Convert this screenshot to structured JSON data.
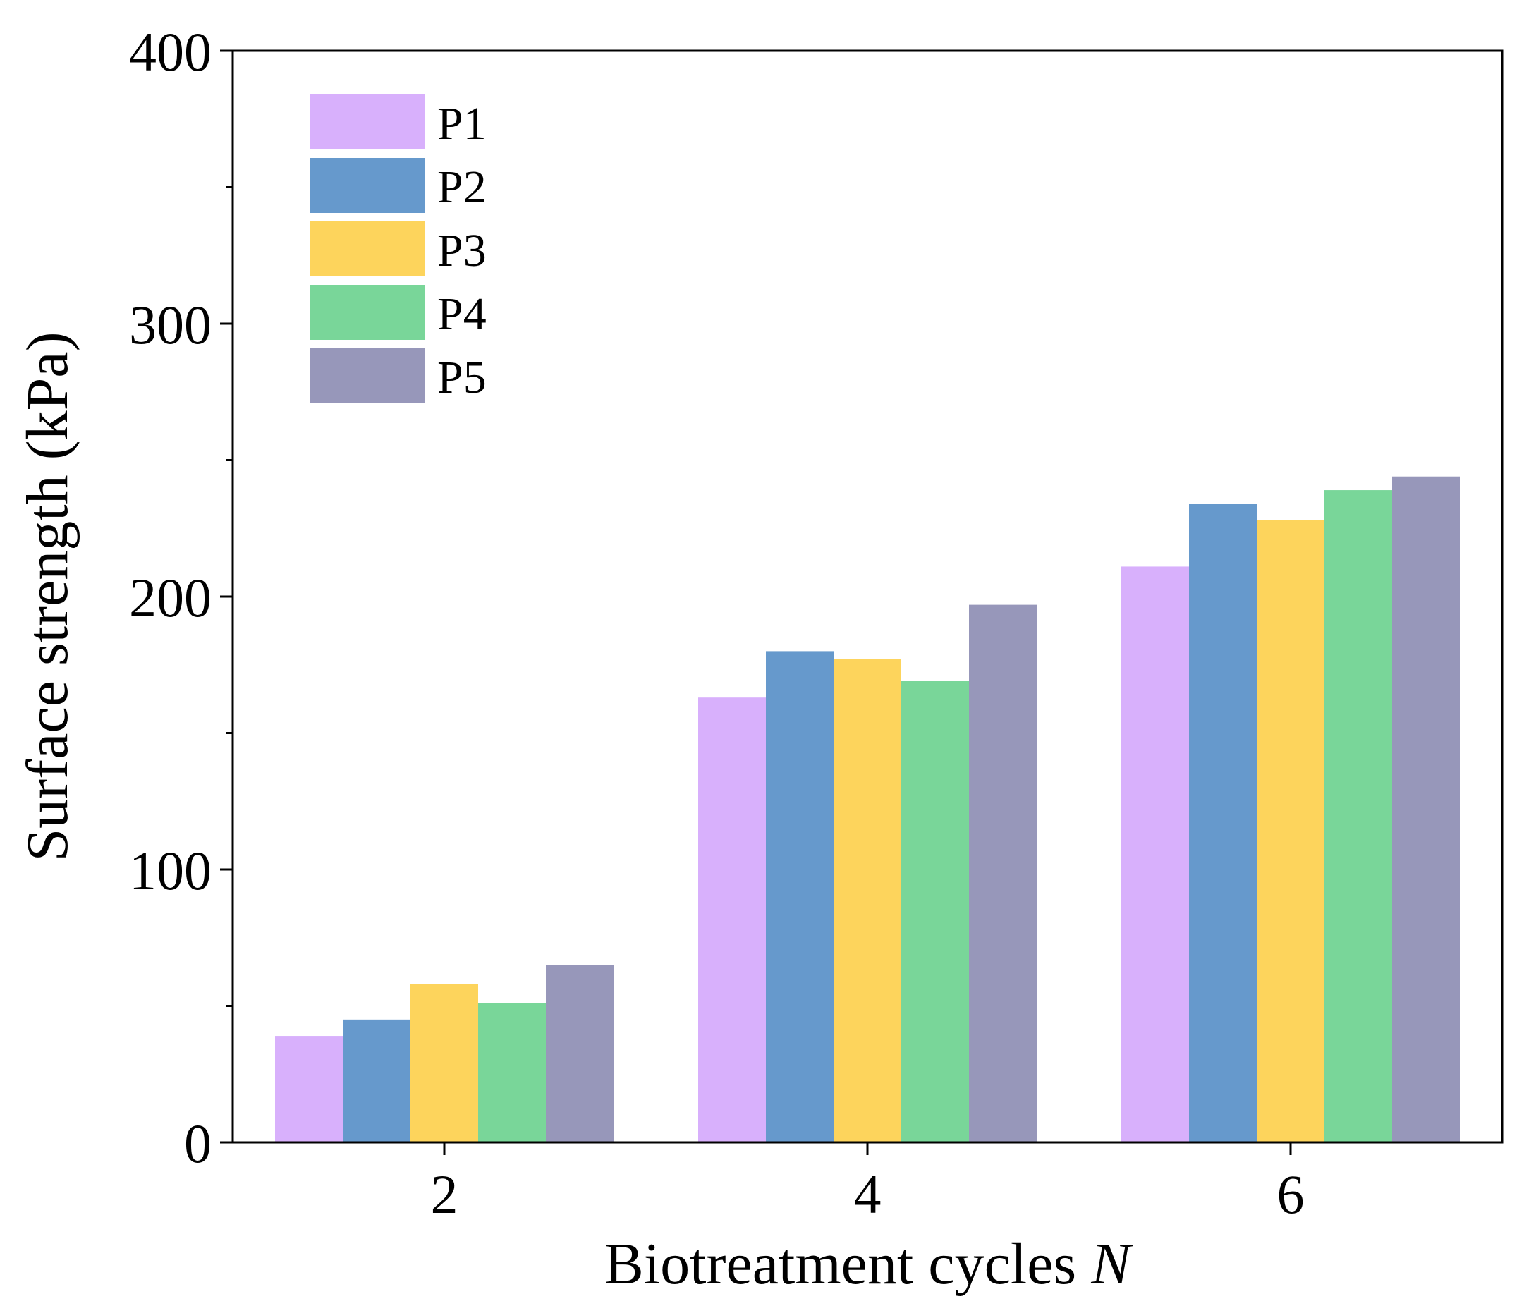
{
  "chart_data": {
    "type": "bar",
    "title": "",
    "xlabel": "Biotreatment cycles",
    "xlabel_var": "N",
    "ylabel": "Surface strength (kPa)",
    "categories": [
      "2",
      "4",
      "6"
    ],
    "ylim": [
      0,
      400
    ],
    "yticks": [
      0,
      100,
      200,
      300,
      400
    ],
    "ytick_labels": [
      "0",
      "100",
      "200",
      "300",
      "400"
    ],
    "grid": false,
    "legend_position": "top-left",
    "series": [
      {
        "name": "P1",
        "color": "#D8B0FC",
        "values": [
          39,
          163,
          211
        ]
      },
      {
        "name": "P2",
        "color": "#6699CC",
        "values": [
          45,
          180,
          234
        ]
      },
      {
        "name": "P3",
        "color": "#FDD45C",
        "values": [
          58,
          177,
          228
        ]
      },
      {
        "name": "P4",
        "color": "#79D699",
        "values": [
          51,
          169,
          239
        ]
      },
      {
        "name": "P5",
        "color": "#9797BA",
        "values": [
          65,
          197,
          244
        ]
      }
    ]
  }
}
